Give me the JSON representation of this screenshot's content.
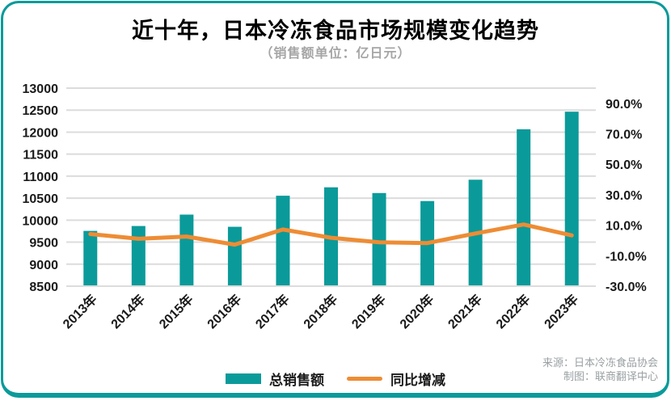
{
  "header": {
    "title": "近十年，日本冷冻食品市场规模变化趋势",
    "subtitle": "（销售额单位：亿日元）"
  },
  "legend": [
    {
      "label": "总销售额",
      "swatch": "bar-swatch",
      "color": "#0b9a9a"
    },
    {
      "label": "同比增减",
      "swatch": "line-swatch",
      "color": "#ee8c34"
    }
  ],
  "source": {
    "line1": "来源：日本冷冻食品协会",
    "line2": "制图：联商翻译中心"
  },
  "colors": {
    "bar": "#0b9a9a",
    "line": "#ee8c34",
    "grid": "#dcdcdc",
    "axis_text": "#1a1a1a",
    "frame": "#0b9a9a",
    "muted_text": "#a6a6a6"
  },
  "chart_data": {
    "type": "bar",
    "subtype": "dual-axis bar + line",
    "title": "近十年，日本冷冻食品市场规模变化趋势",
    "unit_note": "（销售额单位：亿日元）",
    "categories": [
      "2013年",
      "2014年",
      "2015年",
      "2016年",
      "2017年",
      "2018年",
      "2019年",
      "2020年",
      "2021年",
      "2022年",
      "2023年"
    ],
    "series": [
      {
        "name": "总销售额",
        "type": "bar",
        "axis": "left",
        "values": [
          9756,
          9867,
          10126,
          9849,
          10555,
          10746,
          10616,
          10434,
          10919,
          12065,
          12464
        ]
      },
      {
        "name": "同比增减",
        "type": "line",
        "axis": "right",
        "values": [
          4.2,
          1.1,
          2.6,
          -2.7,
          7.2,
          1.8,
          -1.2,
          -1.7,
          4.6,
          10.5,
          3.3
        ]
      }
    ],
    "left_axis": {
      "min": 8500,
      "max": 13000,
      "step": 500,
      "tick_labels": [
        "13000",
        "12500",
        "12000",
        "11500",
        "11000",
        "10500",
        "10000",
        "9500",
        "9000",
        "8500"
      ]
    },
    "right_axis": {
      "min": -30,
      "max": 100,
      "tick_values": [
        90,
        70,
        50,
        30,
        10,
        -10,
        -30
      ],
      "tick_labels": [
        "90.0%",
        "70.0%",
        "50.0%",
        "30.0%",
        "10.0%",
        "-10.0%",
        "-30.0%"
      ]
    },
    "grid": true,
    "legend_position": "bottom"
  }
}
